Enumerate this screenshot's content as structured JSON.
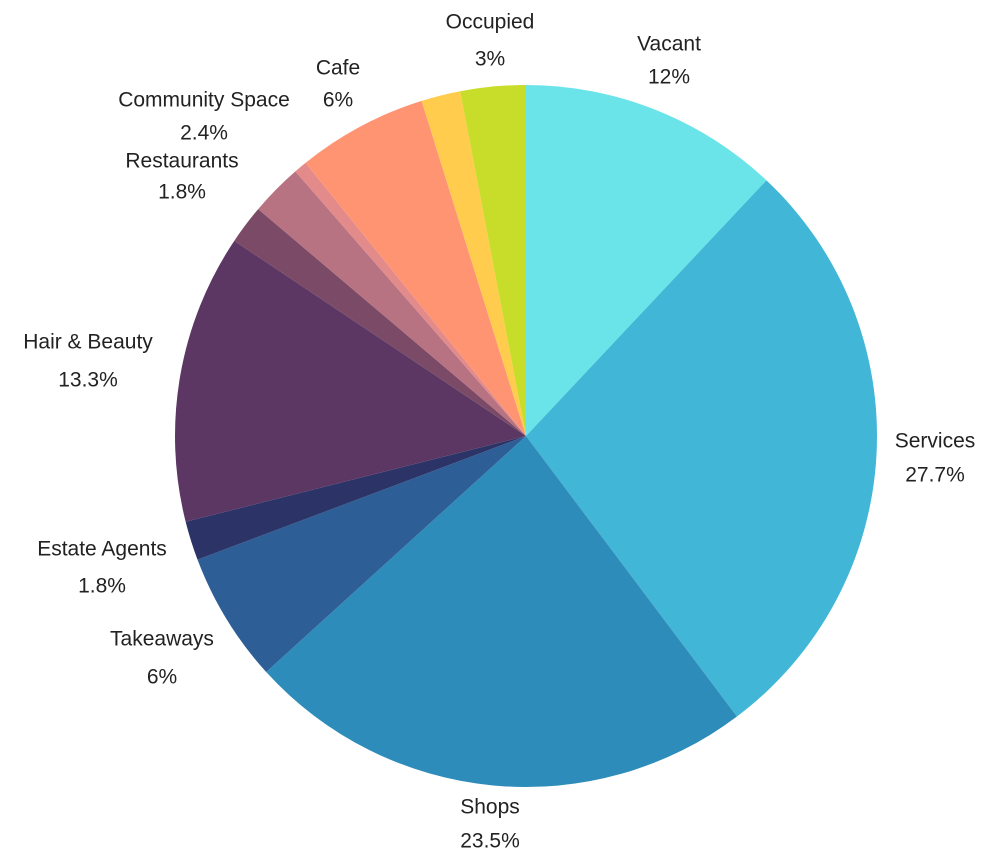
{
  "chart_data": {
    "type": "pie",
    "categories": [
      "Vacant",
      "Services",
      "Shops",
      "Takeaways",
      "Estate Agents",
      "Hair & Beauty",
      "Restaurants",
      "Community Space",
      null,
      "Cafe",
      null,
      "Occupied"
    ],
    "values": [
      12,
      27.7,
      23.5,
      6,
      1.8,
      13.3,
      1.8,
      2.4,
      0.6,
      6,
      1.8,
      3
    ],
    "value_labels": [
      "12%",
      "27.7%",
      "23.5%",
      "6%",
      "1.8%",
      "13.3%",
      "1.8%",
      "2.4%",
      null,
      "6%",
      null,
      "3%"
    ],
    "colors": [
      "#6ae4e8",
      "#42b6d6",
      "#2e8cba",
      "#2e5e96",
      "#2c3366",
      "#5c3764",
      "#7b4a66",
      "#b87383",
      "#e38a8a",
      "#ff9473",
      "#ffcc4d",
      "#c8dd2a"
    ]
  }
}
